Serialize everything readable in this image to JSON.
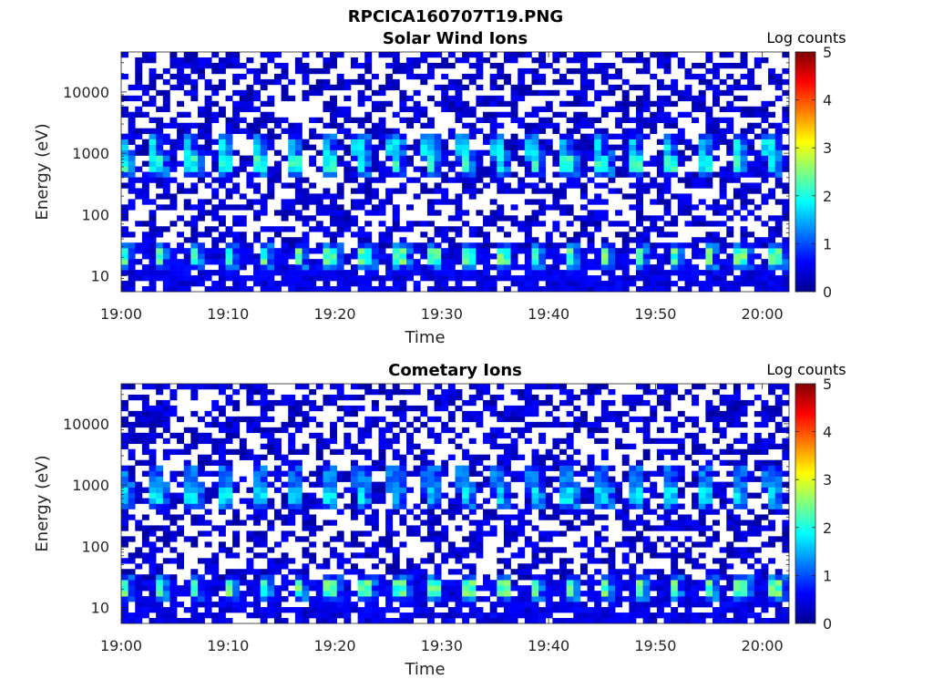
{
  "figure_title": "RPCICA160707T19.PNG",
  "chart_data": [
    {
      "type": "heatmap",
      "title": "Solar Wind Ions",
      "xlabel": "Time",
      "ylabel": "Energy (eV)",
      "x_ticks": [
        "19:00",
        "19:10",
        "19:20",
        "19:30",
        "19:40",
        "19:50",
        "20:00"
      ],
      "y_ticks": [
        "10",
        "100",
        "1000",
        "10000"
      ],
      "y_scale": "log",
      "y_range_eV": [
        5.5,
        45000
      ],
      "x_range_minutes": [
        0,
        62.5
      ],
      "colorbar_label": "Log counts",
      "colorbar_ticks": [
        "0",
        "1",
        "2",
        "3",
        "4",
        "5"
      ],
      "colorbar_range": [
        0,
        5
      ],
      "colormap": "jet",
      "features": [
        {
          "energy_eV": 20,
          "log_counts": 2.4,
          "period_min": 3.2
        },
        {
          "energy_eV": 700,
          "log_counts": 2.1,
          "period_min": 3.2
        },
        {
          "energy_eV": 1300,
          "log_counts": 1.8,
          "period_min": 3.2
        }
      ]
    },
    {
      "type": "heatmap",
      "title": "Cometary Ions",
      "xlabel": "Time",
      "ylabel": "Energy (eV)",
      "x_ticks": [
        "19:00",
        "19:10",
        "19:20",
        "19:30",
        "19:40",
        "19:50",
        "20:00"
      ],
      "y_ticks": [
        "10",
        "100",
        "1000",
        "10000"
      ],
      "y_scale": "log",
      "y_range_eV": [
        5.5,
        45000
      ],
      "x_range_minutes": [
        0,
        62.5
      ],
      "colorbar_label": "Log counts",
      "colorbar_ticks": [
        "0",
        "1",
        "2",
        "3",
        "4",
        "5"
      ],
      "colorbar_range": [
        0,
        5
      ],
      "colormap": "jet",
      "features": [
        {
          "energy_eV": 20,
          "log_counts": 2.4,
          "period_min": 3.2
        },
        {
          "energy_eV": 700,
          "log_counts": 1.8,
          "period_min": 3.2
        },
        {
          "energy_eV": 1300,
          "log_counts": 1.3,
          "period_min": 3.2
        }
      ]
    }
  ]
}
